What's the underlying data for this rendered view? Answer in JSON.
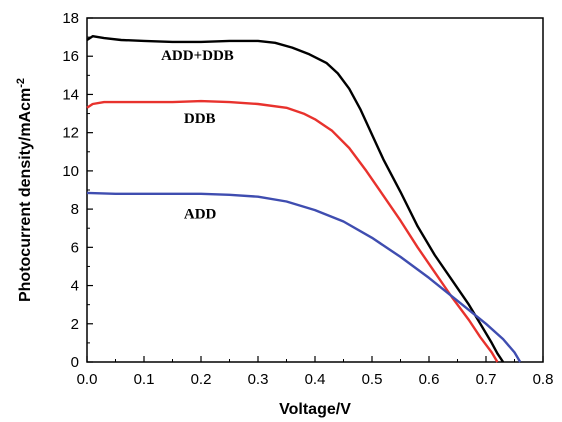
{
  "chart_data": {
    "type": "line",
    "xlabel": "Voltage/V",
    "ylabel": "Photocurrent density/mAcm",
    "ylabel_superscript": "-2",
    "xlim": [
      0.0,
      0.8
    ],
    "ylim": [
      0,
      18
    ],
    "x_ticks": [
      "0.0",
      "0.1",
      "0.2",
      "0.3",
      "0.4",
      "0.5",
      "0.6",
      "0.7",
      "0.8"
    ],
    "y_ticks": [
      "0",
      "2",
      "4",
      "6",
      "8",
      "10",
      "12",
      "14",
      "16",
      "18"
    ],
    "grid": false,
    "legend": "none",
    "series": [
      {
        "name": "ADD+DDB",
        "color": "#000000",
        "points": [
          [
            0.0,
            16.85
          ],
          [
            0.01,
            17.05
          ],
          [
            0.03,
            16.95
          ],
          [
            0.06,
            16.85
          ],
          [
            0.1,
            16.8
          ],
          [
            0.15,
            16.75
          ],
          [
            0.2,
            16.75
          ],
          [
            0.25,
            16.8
          ],
          [
            0.3,
            16.8
          ],
          [
            0.33,
            16.7
          ],
          [
            0.36,
            16.45
          ],
          [
            0.39,
            16.1
          ],
          [
            0.42,
            15.65
          ],
          [
            0.44,
            15.1
          ],
          [
            0.46,
            14.3
          ],
          [
            0.48,
            13.2
          ],
          [
            0.5,
            11.9
          ],
          [
            0.52,
            10.6
          ],
          [
            0.55,
            8.9
          ],
          [
            0.58,
            7.1
          ],
          [
            0.61,
            5.6
          ],
          [
            0.64,
            4.3
          ],
          [
            0.67,
            3.0
          ],
          [
            0.69,
            2.0
          ],
          [
            0.71,
            1.0
          ],
          [
            0.72,
            0.45
          ],
          [
            0.73,
            0.0
          ]
        ]
      },
      {
        "name": "DDB",
        "color": "#e8322d",
        "points": [
          [
            0.0,
            13.3
          ],
          [
            0.01,
            13.5
          ],
          [
            0.03,
            13.6
          ],
          [
            0.06,
            13.6
          ],
          [
            0.1,
            13.6
          ],
          [
            0.15,
            13.6
          ],
          [
            0.2,
            13.65
          ],
          [
            0.25,
            13.6
          ],
          [
            0.3,
            13.5
          ],
          [
            0.35,
            13.3
          ],
          [
            0.38,
            13.0
          ],
          [
            0.4,
            12.7
          ],
          [
            0.43,
            12.1
          ],
          [
            0.46,
            11.2
          ],
          [
            0.49,
            10.0
          ],
          [
            0.52,
            8.7
          ],
          [
            0.55,
            7.4
          ],
          [
            0.58,
            6.0
          ],
          [
            0.61,
            4.7
          ],
          [
            0.64,
            3.4
          ],
          [
            0.67,
            2.2
          ],
          [
            0.69,
            1.3
          ],
          [
            0.71,
            0.5
          ],
          [
            0.72,
            0.0
          ]
        ]
      },
      {
        "name": "ADD",
        "color": "#3f4db0",
        "points": [
          [
            0.0,
            8.85
          ],
          [
            0.05,
            8.8
          ],
          [
            0.1,
            8.8
          ],
          [
            0.15,
            8.8
          ],
          [
            0.2,
            8.8
          ],
          [
            0.25,
            8.75
          ],
          [
            0.3,
            8.65
          ],
          [
            0.35,
            8.4
          ],
          [
            0.4,
            7.95
          ],
          [
            0.45,
            7.35
          ],
          [
            0.5,
            6.5
          ],
          [
            0.55,
            5.5
          ],
          [
            0.6,
            4.4
          ],
          [
            0.65,
            3.2
          ],
          [
            0.7,
            2.0
          ],
          [
            0.73,
            1.2
          ],
          [
            0.75,
            0.5
          ],
          [
            0.76,
            0.0
          ]
        ]
      }
    ],
    "annotations": [
      {
        "text": "ADD+DDB",
        "x": 0.13,
        "y": 15.8
      },
      {
        "text": "DDB",
        "x": 0.17,
        "y": 12.5
      },
      {
        "text": "ADD",
        "x": 0.17,
        "y": 7.5
      }
    ]
  }
}
